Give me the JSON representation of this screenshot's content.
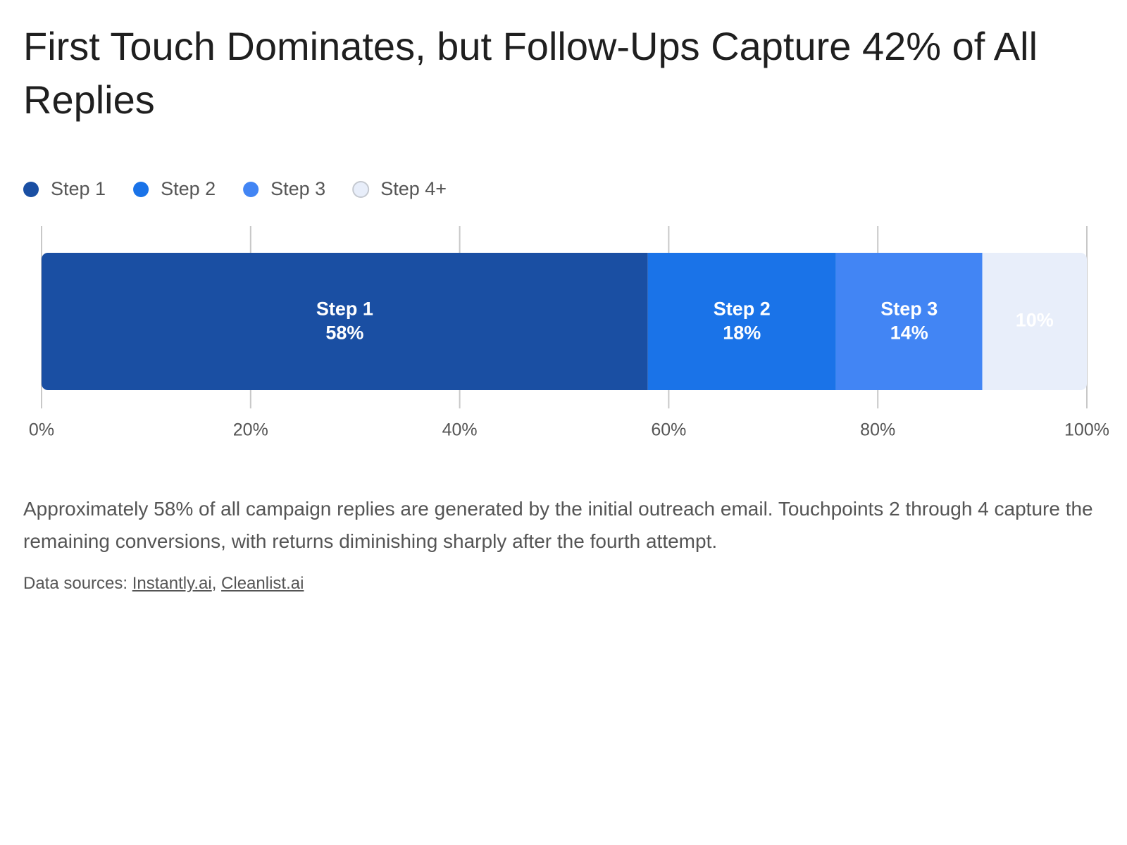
{
  "chart_data": {
    "type": "stacked-bar",
    "title": "First Touch Dominates, but Follow-Ups Capture 42% of All Replies",
    "series": [
      {
        "name": "Step 1",
        "color": "#1a4fa3",
        "values": [
          58
        ],
        "value_labels": [
          "58%"
        ]
      },
      {
        "name": "Step 2",
        "color": "#1a73e8",
        "values": [
          18
        ],
        "value_labels": [
          "18%"
        ]
      },
      {
        "name": "Step 3",
        "color": "#4285f4",
        "values": [
          14
        ],
        "value_labels": [
          "14%"
        ]
      },
      {
        "name": "Step 4+",
        "color": "#e8eefa",
        "values": [
          10
        ],
        "value_labels": [
          "10%"
        ]
      }
    ],
    "xlim": [
      0,
      100
    ],
    "xticks": [
      {
        "value": 0,
        "label": "0%"
      },
      {
        "value": 20,
        "label": "20%"
      },
      {
        "value": 40,
        "label": "40%"
      },
      {
        "value": 60,
        "label": "60%"
      },
      {
        "value": 80,
        "label": "80%"
      },
      {
        "value": 100,
        "label": "100%"
      }
    ],
    "grid": true,
    "legend": "top-left",
    "description": "Approximately 58% of all campaign replies are generated by the initial outreach email. Touchpoints 2 through 4 capture the remaining conversions, with returns diminishing sharply after the fourth attempt.",
    "sources": {
      "label": "Data sources:",
      "links": [
        "Instantly.ai",
        "Cleanlist.ai"
      ],
      "separator": ","
    }
  }
}
